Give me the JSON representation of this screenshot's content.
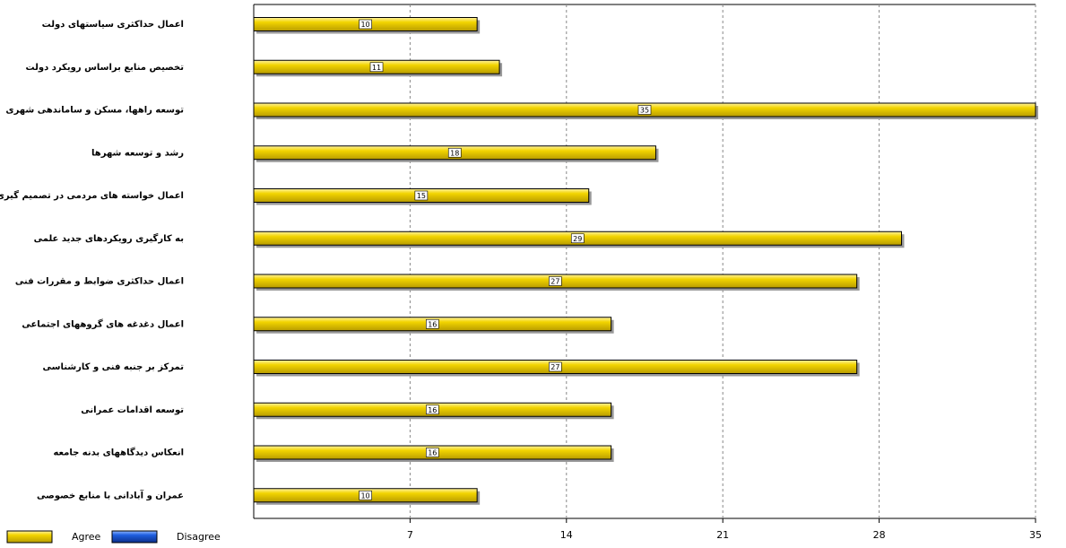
{
  "chart_data": {
    "type": "bar",
    "orientation": "horizontal",
    "categories": [
      "اعمال حداکثری سیاستهای دولت",
      "تخصیص منابع براساس رویکرد دولت",
      "توسعه راهها، مسکن و ساماندهی شهری",
      "رشد و توسعه شهرها",
      "اعمال خواسته های مردمی در تصمیم گیری",
      "به کارگیری رویکردهای جدید علمی",
      "اعمال حداکثری ضوابط و مقررات فنی",
      "اعمال دغدغه های گروههای اجتماعی",
      "تمرکز بر جنبه فنی و کارشناسی",
      "توسعه اقدامات عمرانی",
      "انعکاس دیدگاههای بدنه جامعه",
      "عمران و آبادانی با منابع خصوصی"
    ],
    "series": [
      {
        "name": "Agree",
        "color": "#f2d400",
        "values": [
          10,
          11,
          35,
          18,
          15,
          29,
          27,
          16,
          27,
          16,
          16,
          10
        ]
      },
      {
        "name": "Disagree",
        "color": "#1f5fe0",
        "values": [
          null,
          null,
          null,
          null,
          null,
          null,
          null,
          null,
          null,
          null,
          null,
          null
        ]
      }
    ],
    "xlim": [
      0,
      35
    ],
    "xticks": [
      7,
      14,
      21,
      28,
      35
    ],
    "grid": true
  }
}
